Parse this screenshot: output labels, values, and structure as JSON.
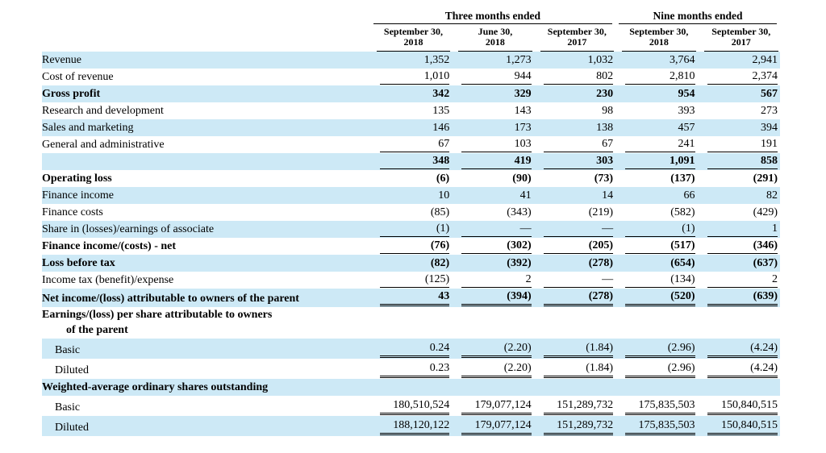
{
  "colors": {
    "stripe": "#cde9f6",
    "row_alt": "#ffffff",
    "rule": "#000000"
  },
  "table": {
    "col_groups": [
      {
        "label": "Three months ended",
        "span": 3
      },
      {
        "label": "Nine months ended",
        "span": 2
      }
    ],
    "columns": [
      {
        "line1": "September 30,",
        "line2": "2018"
      },
      {
        "line1": "June 30,",
        "line2": "2018"
      },
      {
        "line1": "September 30,",
        "line2": "2017"
      },
      {
        "line1": "September 30,",
        "line2": "2018"
      },
      {
        "line1": "September 30,",
        "line2": "2017"
      }
    ],
    "rows": [
      {
        "label": "Revenue",
        "bold": false,
        "indent": 0,
        "underline": "none",
        "values": [
          "1,352",
          "1,273",
          "1,032",
          "3,764",
          "2,941"
        ]
      },
      {
        "label": "Cost of revenue",
        "bold": false,
        "indent": 0,
        "underline": "single",
        "values": [
          "1,010",
          "944",
          "802",
          "2,810",
          "2,374"
        ]
      },
      {
        "label": "Gross profit",
        "bold": true,
        "indent": 0,
        "underline": "none",
        "values": [
          "342",
          "329",
          "230",
          "954",
          "567"
        ]
      },
      {
        "label": "Research and development",
        "bold": false,
        "indent": 0,
        "underline": "none",
        "values": [
          "135",
          "143",
          "98",
          "393",
          "273"
        ]
      },
      {
        "label": "Sales and marketing",
        "bold": false,
        "indent": 0,
        "underline": "none",
        "values": [
          "146",
          "173",
          "138",
          "457",
          "394"
        ]
      },
      {
        "label": "General and administrative",
        "bold": false,
        "indent": 0,
        "underline": "single",
        "values": [
          "67",
          "103",
          "67",
          "241",
          "191"
        ]
      },
      {
        "label": "",
        "bold": true,
        "indent": 0,
        "underline": "single",
        "values": [
          "348",
          "419",
          "303",
          "1,091",
          "858"
        ]
      },
      {
        "label": "Operating loss",
        "bold": true,
        "indent": 0,
        "underline": "none",
        "values": [
          "(6)",
          "(90)",
          "(73)",
          "(137)",
          "(291)"
        ]
      },
      {
        "label": "Finance income",
        "bold": false,
        "indent": 0,
        "underline": "none",
        "values": [
          "10",
          "41",
          "14",
          "66",
          "82"
        ]
      },
      {
        "label": "Finance costs",
        "bold": false,
        "indent": 0,
        "underline": "none",
        "values": [
          "(85)",
          "(343)",
          "(219)",
          "(582)",
          "(429)"
        ]
      },
      {
        "label": "Share in (losses)/earnings of associate",
        "bold": false,
        "indent": 0,
        "underline": "single",
        "values": [
          "(1)",
          "—",
          "—",
          "(1)",
          "1"
        ]
      },
      {
        "label": "Finance income/(costs) - net",
        "bold": true,
        "indent": 0,
        "underline": "single",
        "values": [
          "(76)",
          "(302)",
          "(205)",
          "(517)",
          "(346)"
        ]
      },
      {
        "label": "Loss before tax",
        "bold": true,
        "indent": 0,
        "underline": "none",
        "values": [
          "(82)",
          "(392)",
          "(278)",
          "(654)",
          "(637)"
        ]
      },
      {
        "label": "Income tax (benefit)/expense",
        "bold": false,
        "indent": 0,
        "underline": "single",
        "values": [
          "(125)",
          "2",
          "—",
          "(134)",
          "2"
        ]
      },
      {
        "label": "Net income/(loss) attributable to owners of the parent",
        "bold": true,
        "indent": 0,
        "underline": "double",
        "values": [
          "43",
          "(394)",
          "(278)",
          "(520)",
          "(639)"
        ]
      },
      {
        "label": "Earnings/(loss) per share attributable to owners\nof the parent",
        "bold": true,
        "indent": 0,
        "underline": "none",
        "values": [
          "",
          "",
          "",
          "",
          ""
        ]
      },
      {
        "label": "Basic",
        "bold": false,
        "indent": 1,
        "underline": "double",
        "values": [
          "0.24",
          "(2.20)",
          "(1.84)",
          "(2.96)",
          "(4.24)"
        ]
      },
      {
        "label": "Diluted",
        "bold": false,
        "indent": 1,
        "underline": "double",
        "values": [
          "0.23",
          "(2.20)",
          "(1.84)",
          "(2.96)",
          "(4.24)"
        ]
      },
      {
        "label": "Weighted-average ordinary shares outstanding",
        "bold": true,
        "indent": 0,
        "underline": "none",
        "values": [
          "",
          "",
          "",
          "",
          ""
        ]
      },
      {
        "label": "Basic",
        "bold": false,
        "indent": 1,
        "underline": "double",
        "values": [
          "180,510,524",
          "179,077,124",
          "151,289,732",
          "175,835,503",
          "150,840,515"
        ]
      },
      {
        "label": "Diluted",
        "bold": false,
        "indent": 1,
        "underline": "double",
        "values": [
          "188,120,122",
          "179,077,124",
          "151,289,732",
          "175,835,503",
          "150,840,515"
        ]
      }
    ]
  }
}
